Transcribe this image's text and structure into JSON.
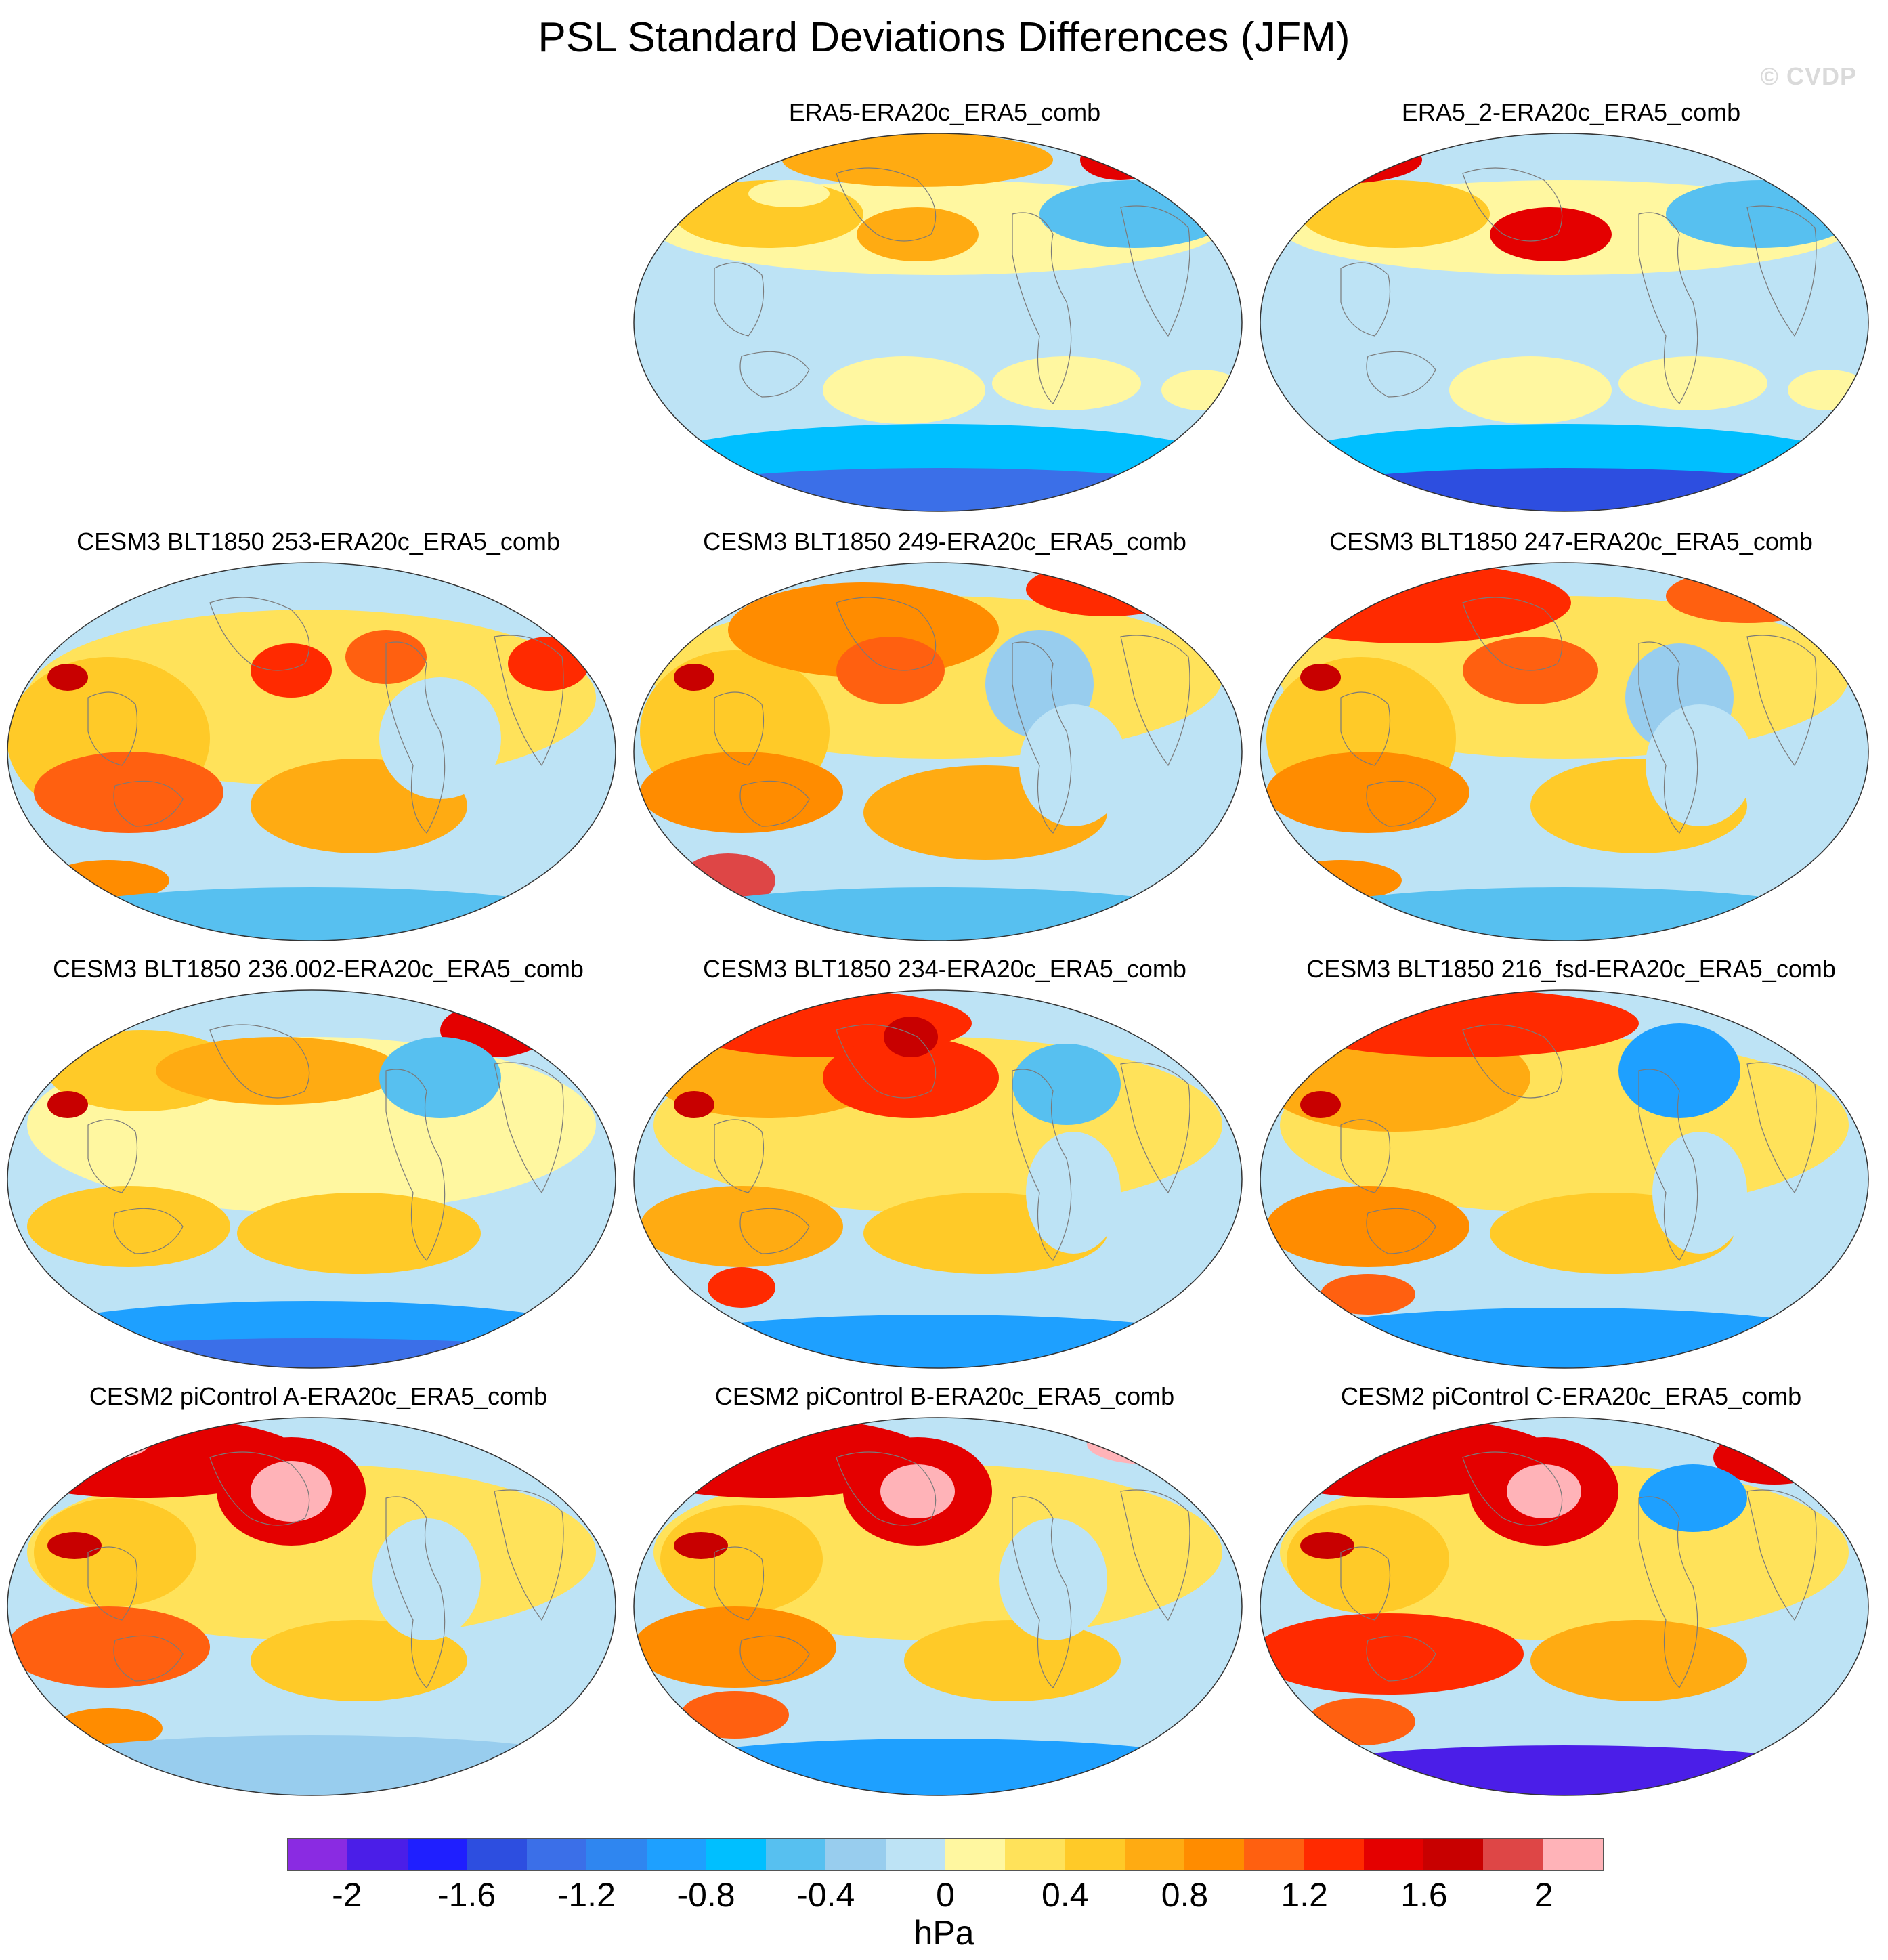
{
  "title": "PSL Standard Deviations Differences (JFM)",
  "watermark": "© CVDP",
  "panels": [
    {
      "label": "ERA5-ERA20c_ERA5_comb",
      "pattern": "obs"
    },
    {
      "label": "ERA5_2-ERA20c_ERA5_comb",
      "pattern": "obs2"
    },
    {
      "label": "CESM3 BLT1850 253-ERA20c_ERA5_comb",
      "pattern": "m253"
    },
    {
      "label": "CESM3 BLT1850 249-ERA20c_ERA5_comb",
      "pattern": "m249"
    },
    {
      "label": "CESM3 BLT1850 247-ERA20c_ERA5_comb",
      "pattern": "m247"
    },
    {
      "label": "CESM3 BLT1850 236.002-ERA20c_ERA5_comb",
      "pattern": "m236"
    },
    {
      "label": "CESM3 BLT1850 234-ERA20c_ERA5_comb",
      "pattern": "m234"
    },
    {
      "label": "CESM3 BLT1850 216_fsd-ERA20c_ERA5_comb",
      "pattern": "m216"
    },
    {
      "label": "CESM2 piControl A-ERA20c_ERA5_comb",
      "pattern": "piA"
    },
    {
      "label": "CESM2 piControl B-ERA20c_ERA5_comb",
      "pattern": "piB"
    },
    {
      "label": "CESM2 piControl C-ERA20c_ERA5_comb",
      "pattern": "piC"
    }
  ],
  "colorbar": {
    "units": "hPa",
    "colors": [
      "#8a2be2",
      "#4b1ee8",
      "#1f1fff",
      "#2d4ee0",
      "#3b6fe8",
      "#2f86f0",
      "#1ea0ff",
      "#00bfff",
      "#57c0f0",
      "#98cdee",
      "#bde3f5",
      "#fff7a0",
      "#ffe25a",
      "#ffca28",
      "#ffab12",
      "#ff8c00",
      "#ff6010",
      "#ff2a00",
      "#e40000",
      "#c80000",
      "#de4646",
      "#ffb3b8"
    ],
    "ticks": [
      "-2",
      "-1.6",
      "-1.2",
      "-0.8",
      "-0.4",
      "0",
      "0.4",
      "0.8",
      "1.2",
      "1.6",
      "2"
    ]
  }
}
